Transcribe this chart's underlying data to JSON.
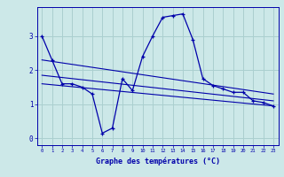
{
  "xlabel": "Graphe des températures (°C)",
  "bg_color": "#cce8e8",
  "grid_color": "#aacfcf",
  "line_color": "#0000aa",
  "x_ticks": [
    0,
    1,
    2,
    3,
    4,
    5,
    6,
    7,
    8,
    9,
    10,
    11,
    12,
    13,
    14,
    15,
    16,
    17,
    18,
    19,
    20,
    21,
    22,
    23
  ],
  "y_ticks": [
    0,
    1,
    2,
    3
  ],
  "ylim": [
    -0.2,
    3.85
  ],
  "xlim": [
    -0.5,
    23.5
  ],
  "main_x": [
    0,
    1,
    2,
    3,
    4,
    5,
    6,
    7,
    8,
    9,
    10,
    11,
    12,
    13,
    14,
    15,
    16,
    17,
    18,
    19,
    20,
    21,
    22,
    23
  ],
  "main_y": [
    3.0,
    2.3,
    1.6,
    1.6,
    1.5,
    1.3,
    0.15,
    0.3,
    1.75,
    1.4,
    2.4,
    3.0,
    3.55,
    3.6,
    3.65,
    2.9,
    1.75,
    1.55,
    1.45,
    1.35,
    1.35,
    1.1,
    1.05,
    0.95
  ],
  "line2_x": [
    0,
    23
  ],
  "line2_y": [
    2.3,
    1.3
  ],
  "line3_x": [
    0,
    23
  ],
  "line3_y": [
    1.85,
    1.1
  ],
  "line4_x": [
    0,
    23
  ],
  "line4_y": [
    1.6,
    0.95
  ]
}
